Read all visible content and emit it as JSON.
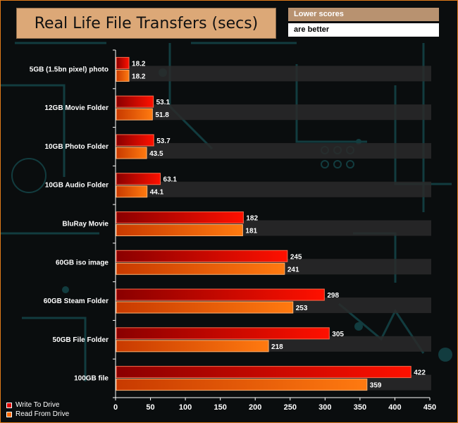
{
  "title": "Real Life File Transfers (secs)",
  "note": {
    "line1": "Lower scores",
    "line2": "are better"
  },
  "colors": {
    "write": "#e00000",
    "read": "#ff6a00",
    "accent": "#e07a1a",
    "panel": "#dca877"
  },
  "chart_data": {
    "type": "bar",
    "orientation": "horizontal",
    "title": "Real Life File Transfers (secs)",
    "categories": [
      "5GB (1.5bn pixel) photo",
      "12GB Movie Folder",
      "10GB Photo Folder",
      "10GB Audio Folder",
      "BluRay Movie",
      "60GB iso image",
      "60GB Steam Folder",
      "50GB File Folder",
      "100GB file"
    ],
    "series": [
      {
        "name": "Write To  Drive",
        "values": [
          18.2,
          53.1,
          53.7,
          63.1,
          182,
          245,
          298,
          305,
          422
        ]
      },
      {
        "name": "Read From  Drive",
        "values": [
          18.2,
          51.8,
          43.5,
          44.1,
          181,
          241,
          253,
          218,
          359
        ]
      }
    ],
    "value_labels": [
      [
        "18.2",
        "53.1",
        "53.7",
        "63.1",
        "182",
        "245",
        "298",
        "305",
        "422"
      ],
      [
        "18.2",
        "51.8",
        "43.5",
        "44.1",
        "181",
        "241",
        "253",
        "218",
        "359"
      ]
    ],
    "xlim": [
      0,
      450
    ],
    "xticks": [
      "0",
      "50",
      "100",
      "150",
      "200",
      "250",
      "300",
      "350",
      "400",
      "450"
    ],
    "legend": "bottom-left"
  }
}
